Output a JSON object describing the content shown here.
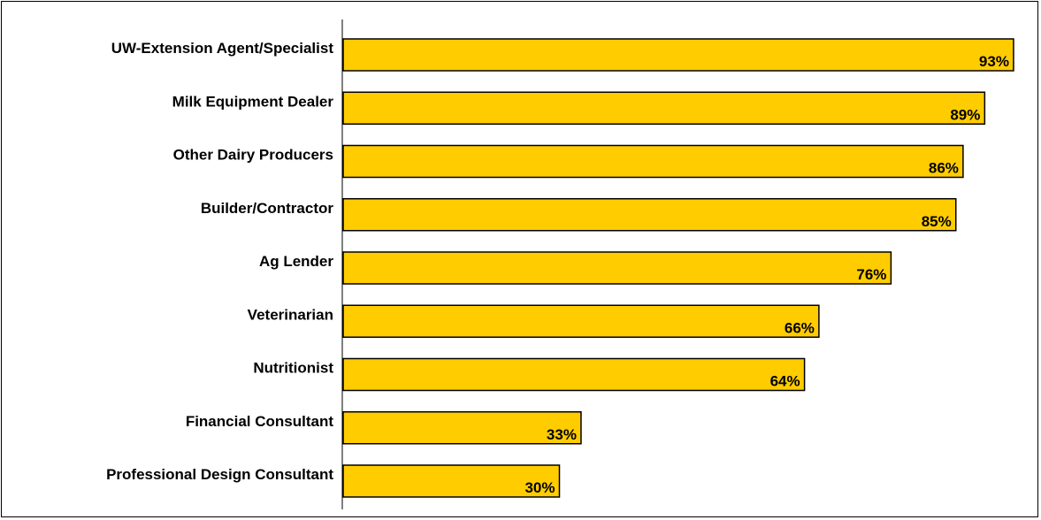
{
  "chart_data": {
    "type": "bar",
    "orientation": "horizontal",
    "categories": [
      "UW-Extension Agent/Specialist",
      "Milk Equipment Dealer",
      "Other Dairy Producers",
      "Builder/Contractor",
      "Ag Lender",
      "Veterinarian",
      "Nutritionist",
      "Financial Consultant",
      "Professional Design Consultant"
    ],
    "values": [
      93,
      89,
      86,
      85,
      76,
      66,
      64,
      33,
      30
    ],
    "value_labels": [
      "93%",
      "89%",
      "86%",
      "85%",
      "76%",
      "66%",
      "64%",
      "33%",
      "30%"
    ],
    "unit": "%",
    "xlim": [
      0,
      100
    ],
    "bar_color": "#FFCC00",
    "bar_border_color": "#000000",
    "grid": false,
    "title": "",
    "xlabel": "",
    "ylabel": ""
  }
}
